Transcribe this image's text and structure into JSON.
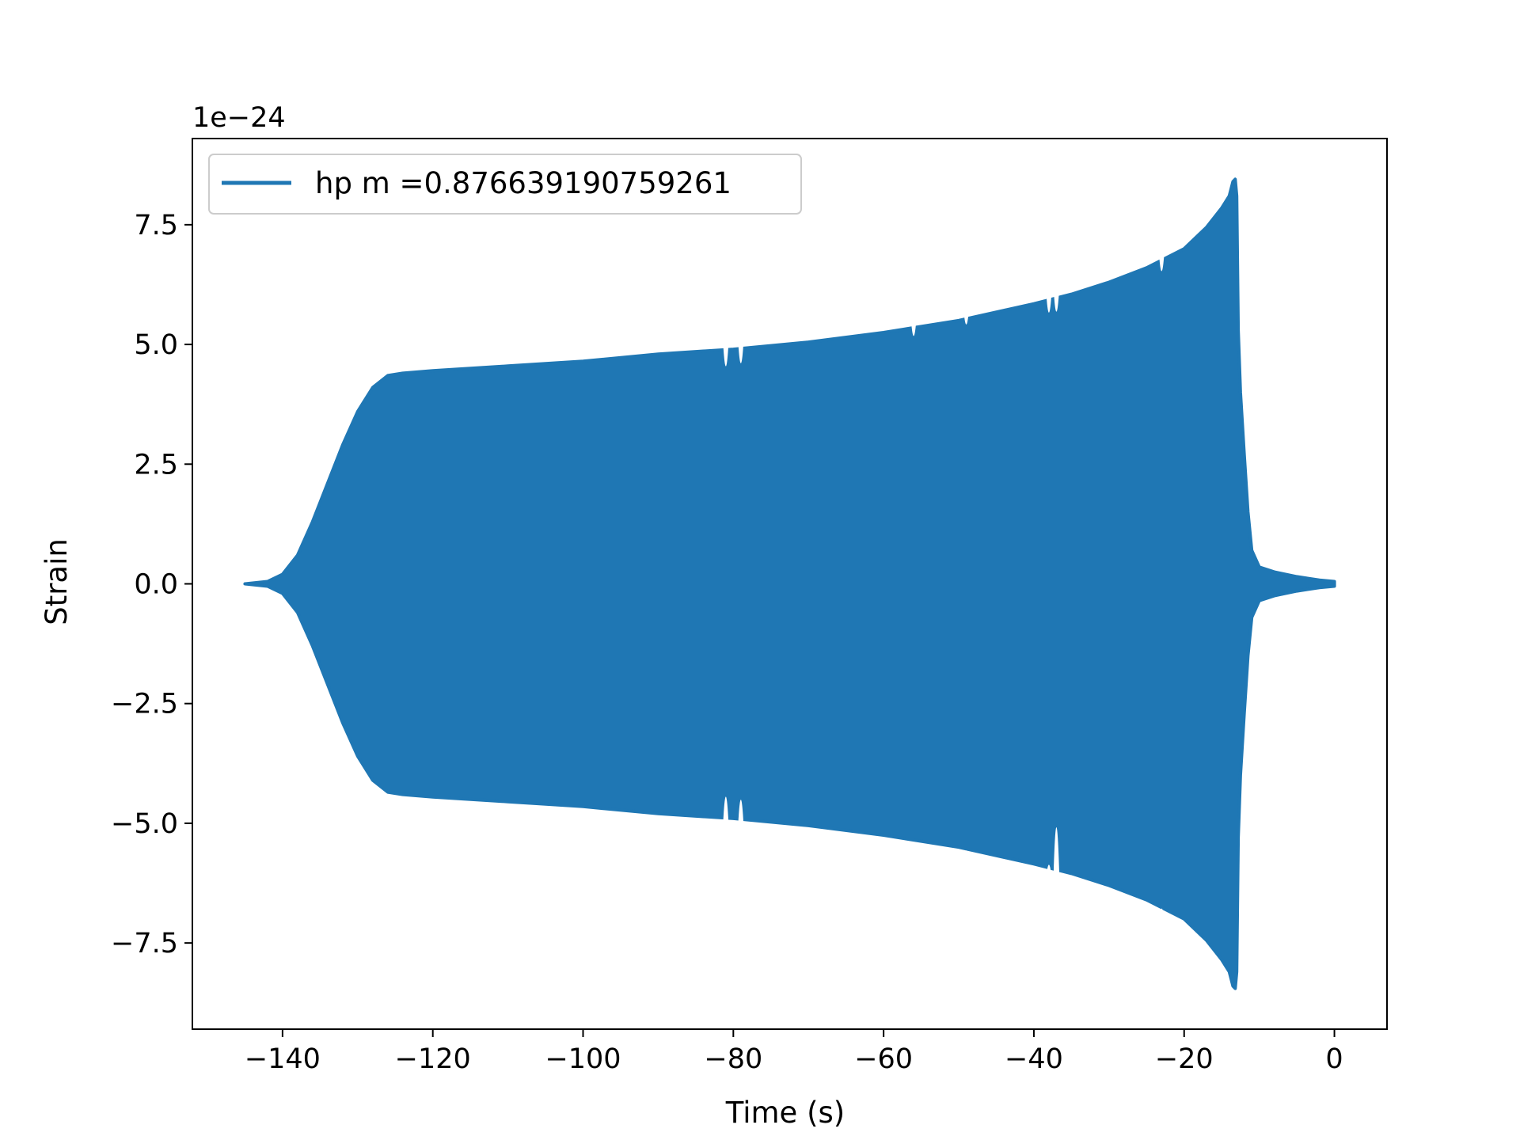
{
  "chart_data": {
    "type": "line",
    "xlabel": "Time (s)",
    "ylabel": "Strain",
    "y_offset_text": "1e−24",
    "xlim": [
      -152,
      7
    ],
    "ylim": [
      -9.3,
      9.3
    ],
    "x_ticks": [
      -140,
      -120,
      -100,
      -80,
      -60,
      -40,
      -20,
      0
    ],
    "x_tick_labels": [
      "−140",
      "−120",
      "−100",
      "−80",
      "−60",
      "−40",
      "−20",
      "0"
    ],
    "y_ticks": [
      -7.5,
      -5.0,
      -2.5,
      0.0,
      2.5,
      5.0,
      7.5
    ],
    "y_tick_labels": [
      "−7.5",
      "−5.0",
      "−2.5",
      "0.0",
      "2.5",
      "5.0",
      "7.5"
    ],
    "grid": false,
    "legend_position": "top-left",
    "series": [
      {
        "name": "hp m =0.876639190759261",
        "color": "#1f77b4",
        "envelope_x": [
          -145,
          -142,
          -140,
          -138,
          -136,
          -134,
          -132,
          -130,
          -128,
          -126,
          -124,
          -120,
          -110,
          -100,
          -90,
          -80,
          -70,
          -60,
          -50,
          -40,
          -35,
          -30,
          -25,
          -20,
          -17,
          -15,
          -14,
          -13.5,
          -13.2,
          -13.0,
          -12.8,
          -12.5,
          -12.0,
          -11.5,
          -11.0,
          -10.0,
          -8.0,
          -5.0,
          -2.0,
          0
        ],
        "envelope_upper": [
          0.0,
          0.05,
          0.2,
          0.6,
          1.3,
          2.1,
          2.9,
          3.6,
          4.1,
          4.35,
          4.4,
          4.45,
          4.55,
          4.65,
          4.8,
          4.9,
          5.05,
          5.25,
          5.5,
          5.85,
          6.05,
          6.3,
          6.6,
          7.0,
          7.45,
          7.85,
          8.1,
          8.4,
          8.45,
          8.1,
          5.3,
          4.0,
          2.7,
          1.5,
          0.7,
          0.35,
          0.25,
          0.15,
          0.08,
          0.05
        ],
        "dips": [
          {
            "x": -81.0,
            "upper": 3.9,
            "lower": -3.7
          },
          {
            "x": -79.0,
            "upper": 4.0,
            "lower": -3.8
          },
          {
            "x": -56.0,
            "upper": 4.7,
            "lower": -5.2
          },
          {
            "x": -49.0,
            "upper": 5.0,
            "lower": -5.3
          },
          {
            "x": -38.0,
            "upper": 5.1,
            "lower": -5.5
          },
          {
            "x": -37.0,
            "upper": 5.1,
            "lower": -3.9
          },
          {
            "x": -23.0,
            "upper": 6.0,
            "lower": -6.5
          }
        ]
      }
    ]
  }
}
